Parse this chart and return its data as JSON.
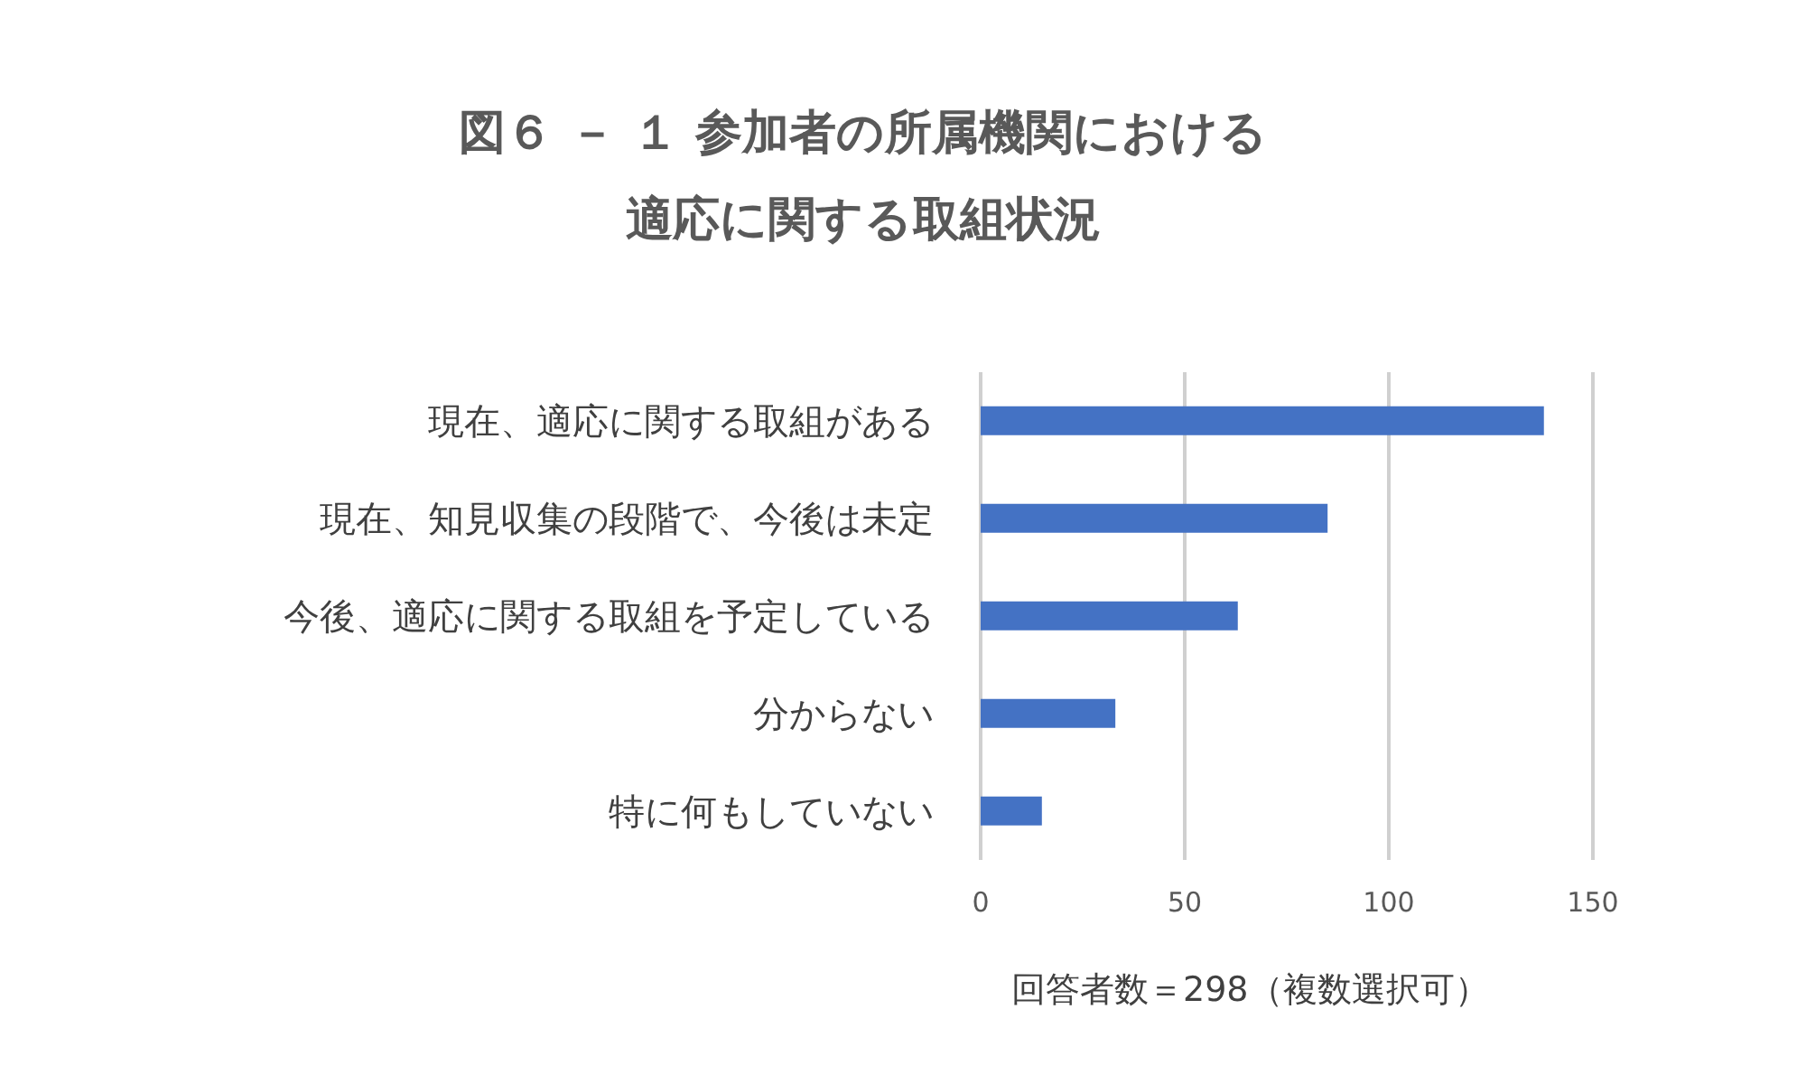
{
  "chart_data": {
    "type": "bar",
    "orientation": "horizontal",
    "title": "図６ － １ 参加者の所属機関における適応に関する取組状況",
    "categories": [
      "現在、適応に関する取組がある",
      "現在、知見収集の段階で、今後は未定",
      "今後、適応に関する取組を予定している",
      "分からない",
      "特に何もしていない"
    ],
    "values": [
      138,
      85,
      63,
      33,
      15
    ],
    "color": "#4472c4",
    "xlim": [
      0,
      150
    ],
    "xticks": [
      0,
      50,
      100,
      150
    ],
    "grid": "x",
    "annotations": [
      "回答者数＝298（複数選択可）"
    ]
  }
}
